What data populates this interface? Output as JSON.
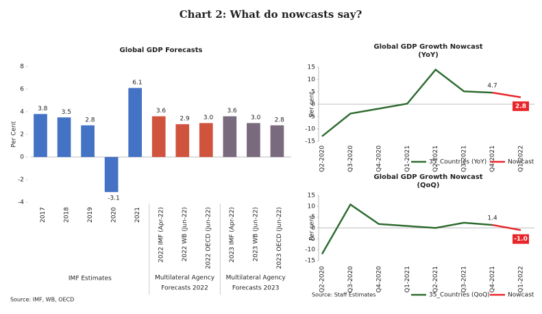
{
  "page_title": "Chart 2: What do nowcasts say?",
  "chart_data": [
    {
      "type": "bar",
      "title": "Global GDP Forecasts",
      "y_label": "Per Cent",
      "ylim": [
        -4,
        8
      ],
      "yticks": [
        -4,
        -2,
        0,
        2,
        4,
        6,
        8
      ],
      "source": "Source: IMF, WB, OECD",
      "groups": [
        {
          "label": [
            "IMF Estimates"
          ],
          "color": "#4472c4",
          "categories": [
            "2017",
            "2018",
            "2019",
            "2020",
            "2021"
          ],
          "values": [
            3.8,
            3.5,
            2.8,
            -3.1,
            6.1
          ],
          "value_labels": [
            "3.8",
            "3.5",
            "2.8",
            "-3.1",
            "6.1"
          ]
        },
        {
          "label": [
            "Multilateral Agency",
            "Forecasts 2022"
          ],
          "color": "#d0533e",
          "categories": [
            "2022 IMF (Apr-22)",
            "2022 WB (Jun-22)",
            "2022 OECD (Jun-22)"
          ],
          "values": [
            3.6,
            2.9,
            3.0
          ],
          "value_labels": [
            "3.6",
            "2.9",
            "3.0"
          ]
        },
        {
          "label": [
            "Multilateral Agency",
            "Forecasts 2023"
          ],
          "color": "#7a6a7e",
          "categories": [
            "2023 IMF (Apr-22)",
            "2023 WB (Jun-22)",
            "2023 OECD (Jun-22)"
          ],
          "values": [
            3.6,
            3.0,
            2.8
          ],
          "value_labels": [
            "3.6",
            "3.0",
            "2.8"
          ]
        }
      ]
    },
    {
      "type": "line",
      "title": "Global GDP Growth Nowcast",
      "subtitle": "(YoY)",
      "y_label": "Per cent",
      "ylim": [
        -15,
        15
      ],
      "yticks": [
        -15,
        -10,
        -5,
        0,
        5,
        10,
        15
      ],
      "categories": [
        "Q2-2020",
        "Q3-2020",
        "Q4-2020",
        "Q1-2021",
        "Q2-2021",
        "Q3-2021",
        "Q4-2021",
        "Q1-2022"
      ],
      "series": [
        {
          "name": "35_Countries (YoY)",
          "color": "#2e6b30",
          "values": [
            -13,
            -3.8,
            -1.8,
            0.2,
            14,
            5.2,
            4.7,
            null
          ],
          "value_labels": [
            null,
            null,
            null,
            null,
            null,
            null,
            "4.7",
            null
          ]
        },
        {
          "name": "Nowcast",
          "color": "#e8262a",
          "values": [
            null,
            null,
            null,
            null,
            null,
            null,
            4.7,
            2.8
          ],
          "value_labels": [
            null,
            null,
            null,
            null,
            null,
            null,
            null,
            "2.8"
          ]
        }
      ]
    },
    {
      "type": "line",
      "title": "Global GDP Growth Nowcast",
      "subtitle": "(QoQ)",
      "y_label": "Per cent",
      "ylim": [
        -15,
        15
      ],
      "yticks": [
        -15,
        -10,
        -5,
        0,
        5,
        10,
        15
      ],
      "source": "Source: Staff Estimates",
      "categories": [
        "Q2-2020",
        "Q3-2020",
        "Q4-2020",
        "Q1-2021",
        "Q2-2021",
        "Q3-2021",
        "Q4-2021",
        "Q1-2022"
      ],
      "series": [
        {
          "name": "35_Countries (QoQ)",
          "color": "#2e6b30",
          "values": [
            -12,
            10.8,
            1.8,
            0.9,
            0,
            2.4,
            1.4,
            null
          ],
          "value_labels": [
            null,
            null,
            null,
            null,
            null,
            null,
            "1.4",
            null
          ]
        },
        {
          "name": "Nowcast",
          "color": "#e8262a",
          "values": [
            null,
            null,
            null,
            null,
            null,
            null,
            1.4,
            -1.0
          ],
          "value_labels": [
            null,
            null,
            null,
            null,
            null,
            null,
            null,
            "-1.0"
          ]
        }
      ]
    }
  ]
}
